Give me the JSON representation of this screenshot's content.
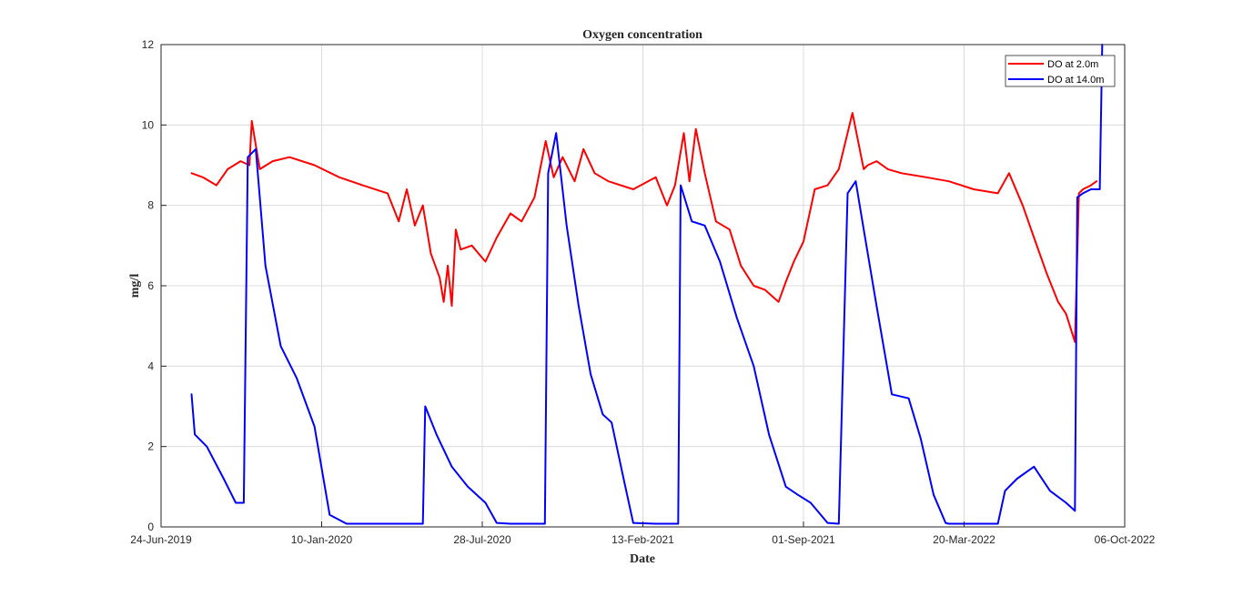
{
  "chart_data": {
    "type": "line",
    "title": "Oxygen concentration",
    "xlabel": "Date",
    "ylabel": "mg/l",
    "xlim": [
      "2019-06-24",
      "2022-10-06"
    ],
    "ylim": [
      0,
      12
    ],
    "x_ticks": [
      "24-Jun-2019",
      "10-Jan-2020",
      "28-Jul-2020",
      "13-Feb-2021",
      "01-Sep-2021",
      "20-Mar-2022",
      "06-Oct-2022"
    ],
    "y_ticks": [
      0,
      2,
      4,
      6,
      8,
      10,
      12
    ],
    "grid": true,
    "legend_position": "top-right",
    "series": [
      {
        "name": "DO at 2.0m",
        "color": "#ff0000",
        "x": [
          "2019-08-01",
          "2019-08-15",
          "2019-09-01",
          "2019-09-15",
          "2019-10-01",
          "2019-10-12",
          "2019-10-15",
          "2019-10-25",
          "2019-11-10",
          "2019-12-01",
          "2020-01-01",
          "2020-02-01",
          "2020-03-01",
          "2020-04-01",
          "2020-04-15",
          "2020-04-25",
          "2020-05-05",
          "2020-05-15",
          "2020-05-25",
          "2020-06-05",
          "2020-06-10",
          "2020-06-15",
          "2020-06-20",
          "2020-06-25",
          "2020-07-01",
          "2020-07-15",
          "2020-08-01",
          "2020-08-15",
          "2020-09-01",
          "2020-09-15",
          "2020-10-01",
          "2020-10-15",
          "2020-10-25",
          "2020-11-05",
          "2020-11-20",
          "2020-12-01",
          "2020-12-15",
          "2021-01-01",
          "2021-02-01",
          "2021-03-01",
          "2021-03-15",
          "2021-03-25",
          "2021-04-05",
          "2021-04-12",
          "2021-04-20",
          "2021-05-01",
          "2021-05-15",
          "2021-06-01",
          "2021-06-15",
          "2021-07-01",
          "2021-07-15",
          "2021-08-01",
          "2021-08-10",
          "2021-08-20",
          "2021-09-01",
          "2021-09-15",
          "2021-10-01",
          "2021-10-15",
          "2021-11-01",
          "2021-11-15",
          "2021-11-20",
          "2021-12-01",
          "2021-12-15",
          "2022-01-01",
          "2022-02-01",
          "2022-03-01",
          "2022-04-01",
          "2022-05-01",
          "2022-05-15",
          "2022-06-01",
          "2022-06-15",
          "2022-07-01",
          "2022-07-15",
          "2022-07-25",
          "2022-08-05",
          "2022-08-10",
          "2022-08-15",
          "2022-08-25",
          "2022-09-01"
        ],
        "y": [
          8.8,
          8.7,
          8.5,
          8.9,
          9.1,
          9.0,
          10.1,
          8.9,
          9.1,
          9.2,
          9.0,
          8.7,
          8.5,
          8.3,
          7.6,
          8.4,
          7.5,
          8.0,
          6.8,
          6.2,
          5.6,
          6.5,
          5.5,
          7.4,
          6.9,
          7.0,
          6.6,
          7.2,
          7.8,
          7.6,
          8.2,
          9.6,
          8.7,
          9.2,
          8.6,
          9.4,
          8.8,
          8.6,
          8.4,
          8.7,
          8.0,
          8.5,
          9.8,
          8.6,
          9.9,
          8.8,
          7.6,
          7.4,
          6.5,
          6.0,
          5.9,
          5.6,
          6.1,
          6.6,
          7.1,
          8.4,
          8.5,
          8.9,
          10.3,
          8.9,
          9.0,
          9.1,
          8.9,
          8.8,
          8.7,
          8.6,
          8.4,
          8.3,
          8.8,
          8.0,
          7.2,
          6.3,
          5.6,
          5.3,
          4.6,
          8.3,
          8.4,
          8.5,
          8.6
        ]
      },
      {
        "name": "DO at 14.0m",
        "color": "#0000ff",
        "x": [
          "2019-08-01",
          "2019-08-05",
          "2019-08-20",
          "2019-09-10",
          "2019-09-25",
          "2019-10-05",
          "2019-10-10",
          "2019-10-20",
          "2019-11-01",
          "2019-11-20",
          "2019-12-10",
          "2020-01-01",
          "2020-01-20",
          "2020-02-10",
          "2020-02-20",
          "2020-03-01",
          "2020-04-01",
          "2020-05-01",
          "2020-05-15",
          "2020-05-18",
          "2020-06-01",
          "2020-06-20",
          "2020-07-10",
          "2020-08-01",
          "2020-08-15",
          "2020-09-01",
          "2020-10-01",
          "2020-10-14",
          "2020-10-18",
          "2020-10-28",
          "2020-11-10",
          "2020-11-25",
          "2020-12-10",
          "2020-12-25",
          "2021-01-05",
          "2021-01-20",
          "2021-02-01",
          "2021-03-01",
          "2021-03-29",
          "2021-04-01",
          "2021-04-15",
          "2021-05-01",
          "2021-05-20",
          "2021-06-10",
          "2021-07-01",
          "2021-07-20",
          "2021-08-10",
          "2021-08-25",
          "2021-09-10",
          "2021-10-01",
          "2021-10-15",
          "2021-10-26",
          "2021-11-05",
          "2021-11-15",
          "2021-12-01",
          "2021-12-20",
          "2022-01-10",
          "2022-01-25",
          "2022-02-10",
          "2022-02-25",
          "2022-03-01",
          "2022-04-01",
          "2022-05-01",
          "2022-05-10",
          "2022-05-25",
          "2022-06-15",
          "2022-07-05",
          "2022-07-25",
          "2022-08-05",
          "2022-08-08",
          "2022-08-15",
          "2022-08-25",
          "2022-09-05",
          "2022-09-08"
        ],
        "y": [
          3.3,
          2.3,
          2.0,
          1.2,
          0.6,
          0.6,
          9.2,
          9.4,
          6.5,
          4.5,
          3.7,
          2.5,
          0.3,
          0.08,
          0.08,
          0.08,
          0.08,
          0.08,
          0.08,
          3.0,
          2.3,
          1.5,
          1.0,
          0.6,
          0.1,
          0.08,
          0.08,
          0.08,
          8.8,
          9.8,
          7.5,
          5.5,
          3.8,
          2.8,
          2.6,
          1.2,
          0.1,
          0.08,
          0.08,
          8.5,
          7.6,
          7.5,
          6.6,
          5.2,
          4.0,
          2.3,
          1.0,
          0.8,
          0.6,
          0.1,
          0.08,
          8.3,
          8.6,
          7.4,
          5.5,
          3.3,
          3.2,
          2.2,
          0.8,
          0.1,
          0.08,
          0.08,
          0.08,
          0.9,
          1.2,
          1.5,
          0.9,
          0.6,
          0.4,
          8.2,
          8.3,
          8.4,
          8.4,
          12.0
        ]
      }
    ]
  }
}
